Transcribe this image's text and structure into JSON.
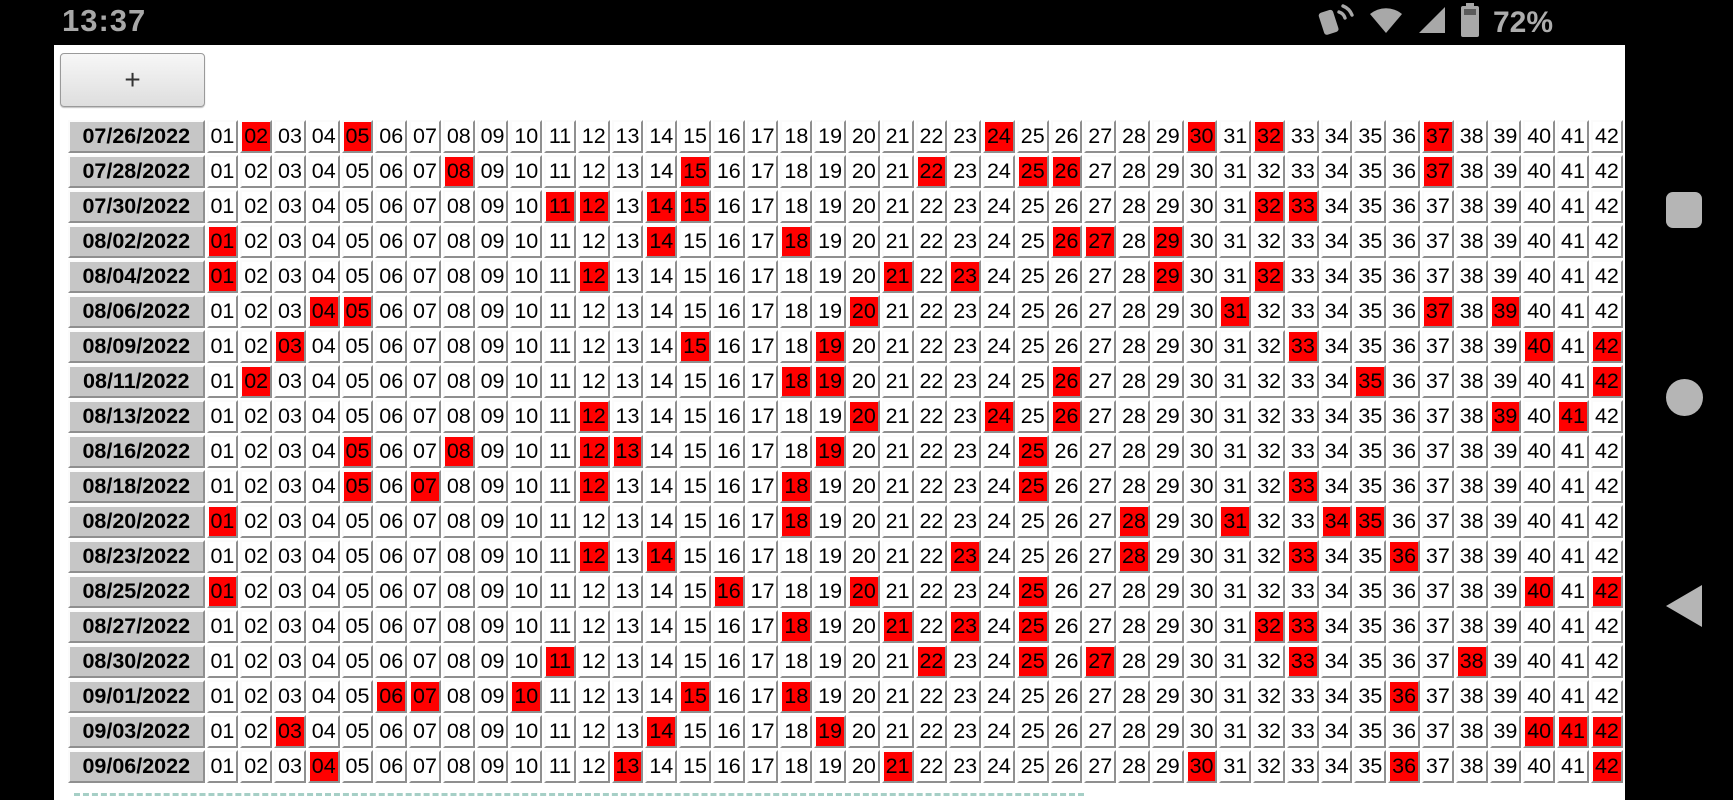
{
  "status_bar": {
    "time": "13:37",
    "battery_percent": "72%"
  },
  "toolbar": {
    "add_button_label": "+"
  },
  "table": {
    "number_min": 1,
    "number_max": 42,
    "rows": [
      {
        "date": "07/26/2022",
        "highlighted": [
          2,
          5,
          24,
          30,
          32,
          37
        ]
      },
      {
        "date": "07/28/2022",
        "highlighted": [
          8,
          15,
          22,
          25,
          26,
          37
        ]
      },
      {
        "date": "07/30/2022",
        "highlighted": [
          11,
          12,
          14,
          15,
          32,
          33
        ]
      },
      {
        "date": "08/02/2022",
        "highlighted": [
          1,
          14,
          18,
          26,
          27,
          29
        ]
      },
      {
        "date": "08/04/2022",
        "highlighted": [
          1,
          12,
          21,
          23,
          29,
          32
        ]
      },
      {
        "date": "08/06/2022",
        "highlighted": [
          4,
          5,
          20,
          31,
          37,
          39
        ]
      },
      {
        "date": "08/09/2022",
        "highlighted": [
          3,
          15,
          19,
          33,
          40,
          42
        ]
      },
      {
        "date": "08/11/2022",
        "highlighted": [
          2,
          18,
          19,
          26,
          35,
          42
        ]
      },
      {
        "date": "08/13/2022",
        "highlighted": [
          12,
          20,
          24,
          26,
          39,
          41
        ]
      },
      {
        "date": "08/16/2022",
        "highlighted": [
          5,
          8,
          12,
          13,
          19,
          25
        ]
      },
      {
        "date": "08/18/2022",
        "highlighted": [
          5,
          7,
          12,
          18,
          25,
          33
        ]
      },
      {
        "date": "08/20/2022",
        "highlighted": [
          1,
          18,
          28,
          31,
          34,
          35
        ]
      },
      {
        "date": "08/23/2022",
        "highlighted": [
          12,
          14,
          23,
          28,
          33,
          36
        ]
      },
      {
        "date": "08/25/2022",
        "highlighted": [
          1,
          16,
          20,
          25,
          40,
          42
        ]
      },
      {
        "date": "08/27/2022",
        "highlighted": [
          18,
          21,
          23,
          25,
          32,
          33
        ]
      },
      {
        "date": "08/30/2022",
        "highlighted": [
          11,
          22,
          25,
          27,
          33,
          38
        ]
      },
      {
        "date": "09/01/2022",
        "highlighted": [
          6,
          7,
          10,
          15,
          18,
          36
        ]
      },
      {
        "date": "09/03/2022",
        "highlighted": [
          3,
          14,
          19,
          40,
          41,
          42
        ]
      },
      {
        "date": "09/06/2022",
        "highlighted": [
          4,
          13,
          21,
          30,
          36,
          42
        ]
      }
    ]
  },
  "colors": {
    "highlight": "#ff0000",
    "date_cell_bg": "#c6c6c6",
    "number_cell_bg": "#ffffff",
    "status_fg": "#a8a8a8",
    "dashed_line": "#a6cfc6"
  }
}
